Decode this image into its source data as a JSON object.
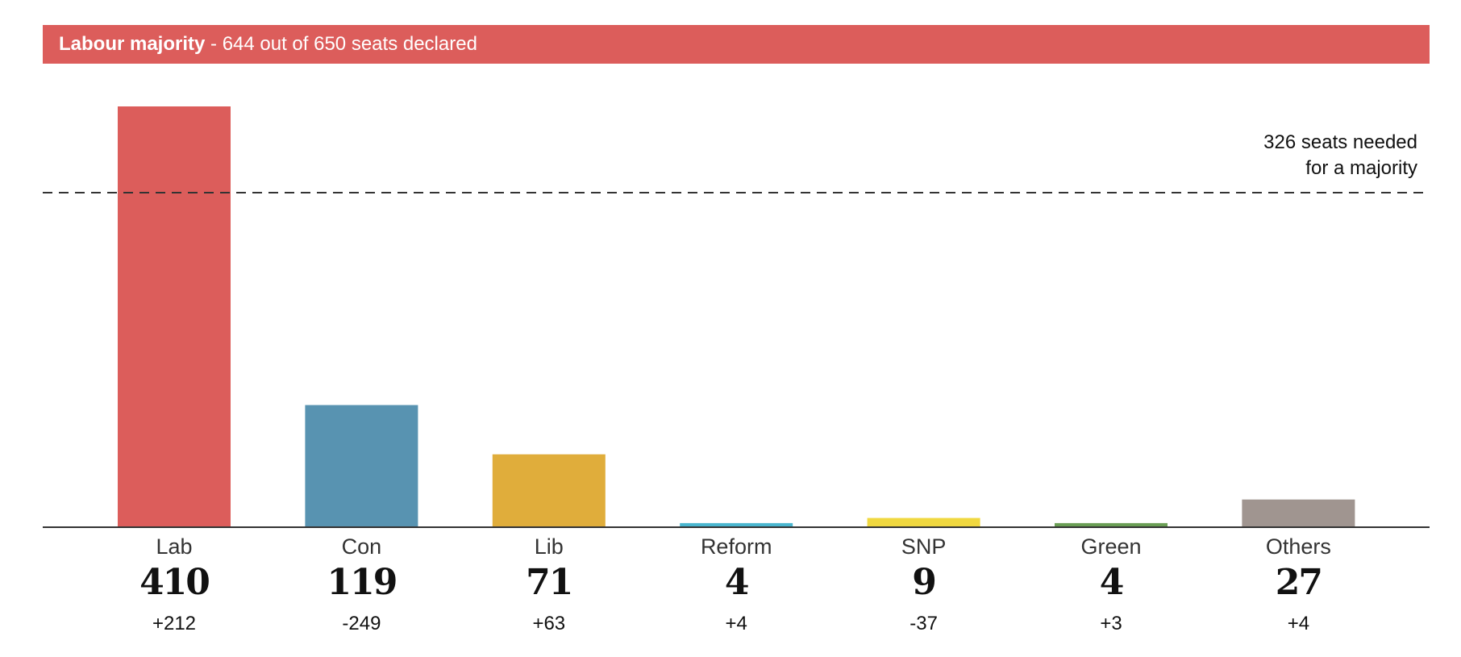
{
  "header": {
    "bold": "Labour majority",
    "rest": " - 644 out of 650 seats declared",
    "color": "#dc5d5b"
  },
  "chart_data": {
    "type": "bar",
    "title": "Labour majority - 644 out of 650 seats declared",
    "categories": [
      "Lab",
      "Con",
      "Lib",
      "Reform",
      "SNP",
      "Green",
      "Others"
    ],
    "values": [
      410,
      119,
      71,
      4,
      9,
      4,
      27
    ],
    "changes": [
      "+212",
      "-249",
      "+63",
      "+4",
      "-37",
      "+3",
      "+4"
    ],
    "colors": [
      "#dc5d5b",
      "#5893b1",
      "#e0ad3b",
      "#4ab6cf",
      "#f0d840",
      "#6a9e55",
      "#a09590"
    ],
    "majority_line": {
      "value": 326,
      "label_line1": "326 seats needed",
      "label_line2": "for a majority"
    },
    "xlabel": "",
    "ylabel": "",
    "ylim": [
      0,
      410
    ],
    "grid": false
  }
}
